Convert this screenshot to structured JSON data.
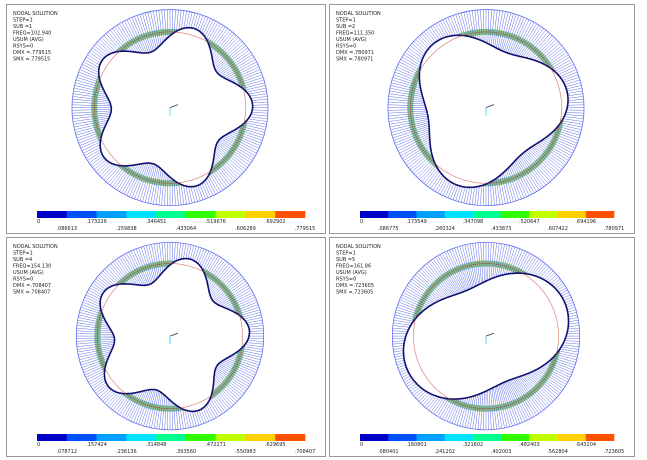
{
  "panels": [
    {
      "info": [
        "NODAL SOLUTION",
        "STEP=1",
        "SUB =1",
        "FREQ=102.940",
        "USUM     (AVG)",
        "RSYS=0",
        "DMX =.779515",
        "SMX =.779515"
      ],
      "colorbar_labels": [
        "0",
        ".086613",
        ".173226",
        ".259838",
        ".346451",
        ".433064",
        ".519676",
        ".606289",
        ".692902",
        ".779515"
      ]
    },
    {
      "info": [
        "NODAL SOLUTION",
        "STEP=1",
        "SUB =2",
        "FREQ=111.350",
        "USUM     (AVG)",
        "RSYS=0",
        "DMX =.780971",
        "SMX =.780971"
      ],
      "colorbar_labels": [
        "0",
        ".086775",
        ".173549",
        ".260324",
        ".347098",
        ".433873",
        ".520647",
        ".607422",
        ".694196",
        ".780971"
      ]
    },
    {
      "info": [
        "NODAL SOLUTION",
        "STEP=1",
        "SUB =4",
        "FREQ=154.130",
        "USUM     (AVG)",
        "RSYS=0",
        "DMX =.708407",
        "SMX =.708407"
      ],
      "colorbar_labels": [
        "0",
        ".078712",
        ".157424",
        ".236136",
        ".314848",
        ".393560",
        ".472271",
        ".550983",
        ".629695",
        ".708407"
      ]
    },
    {
      "info": [
        "NODAL SOLUTION",
        "STEP=1",
        "SUB =5",
        "FREQ=161.86",
        "USUM     (AVG)",
        "RSYS=0",
        "DMX =.723605",
        "SMX =.723605"
      ],
      "colorbar_labels": [
        "0",
        ".080401",
        ".160801",
        ".241202",
        ".321602",
        ".402003",
        ".482403",
        ".562804",
        ".643204",
        ".723605"
      ]
    }
  ]
}
